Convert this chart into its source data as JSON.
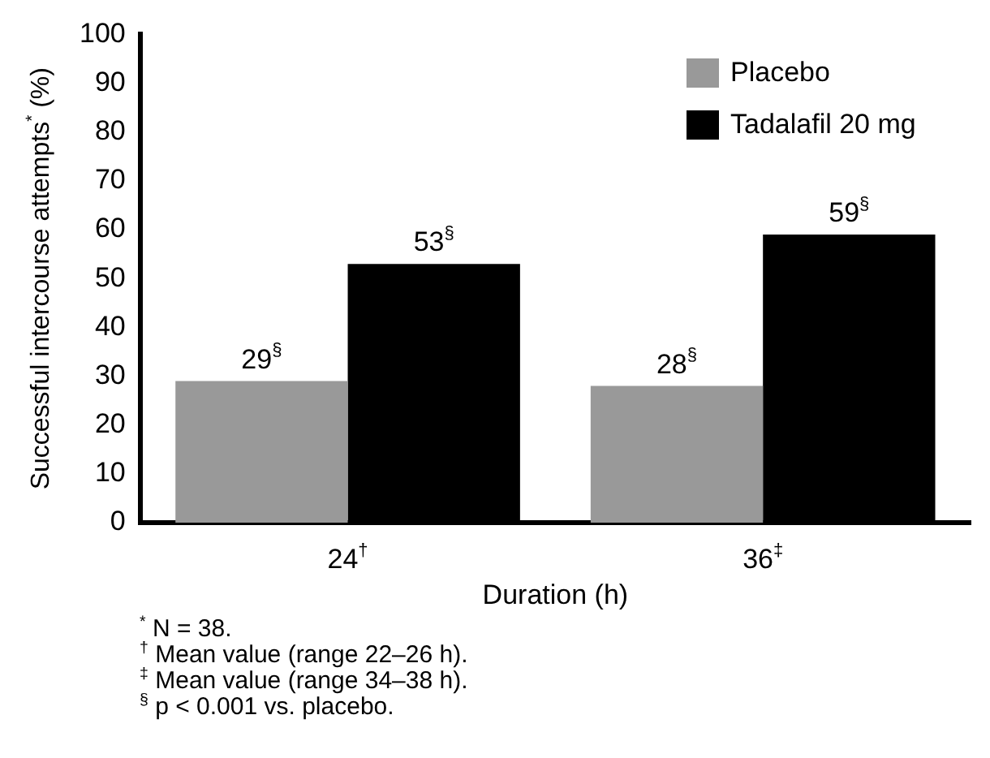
{
  "chart_data": {
    "type": "bar",
    "xlabel": "Duration (h)",
    "ylabel": "Successful intercourse attempts$^{*}$ (%)",
    "categories": [
      "24$^{†}$",
      "36$^{‡}$"
    ],
    "series": [
      {
        "name": "Placebo",
        "color": "#999999",
        "values": [
          29,
          28
        ],
        "value_labels": [
          "29$^{§}$",
          "28$^{§}$"
        ]
      },
      {
        "name": "Tadalafil 20 mg",
        "color": "#000000",
        "values": [
          53,
          59
        ],
        "value_labels": [
          "53$^{§}$",
          "59$^{§}$"
        ]
      }
    ],
    "ylim": [
      0,
      100
    ],
    "yticks": [
      0,
      10,
      20,
      30,
      40,
      50,
      60,
      70,
      80,
      90,
      100
    ],
    "grid": false,
    "legend": "top right",
    "annotations": [
      "$^{*}$ N = 38.",
      "$^{†}$ Mean value (range 22–26 h).",
      "$^{‡}$ Mean value (range 34–38 h).",
      "$^{§}$ p < 0.001 vs. placebo."
    ]
  }
}
